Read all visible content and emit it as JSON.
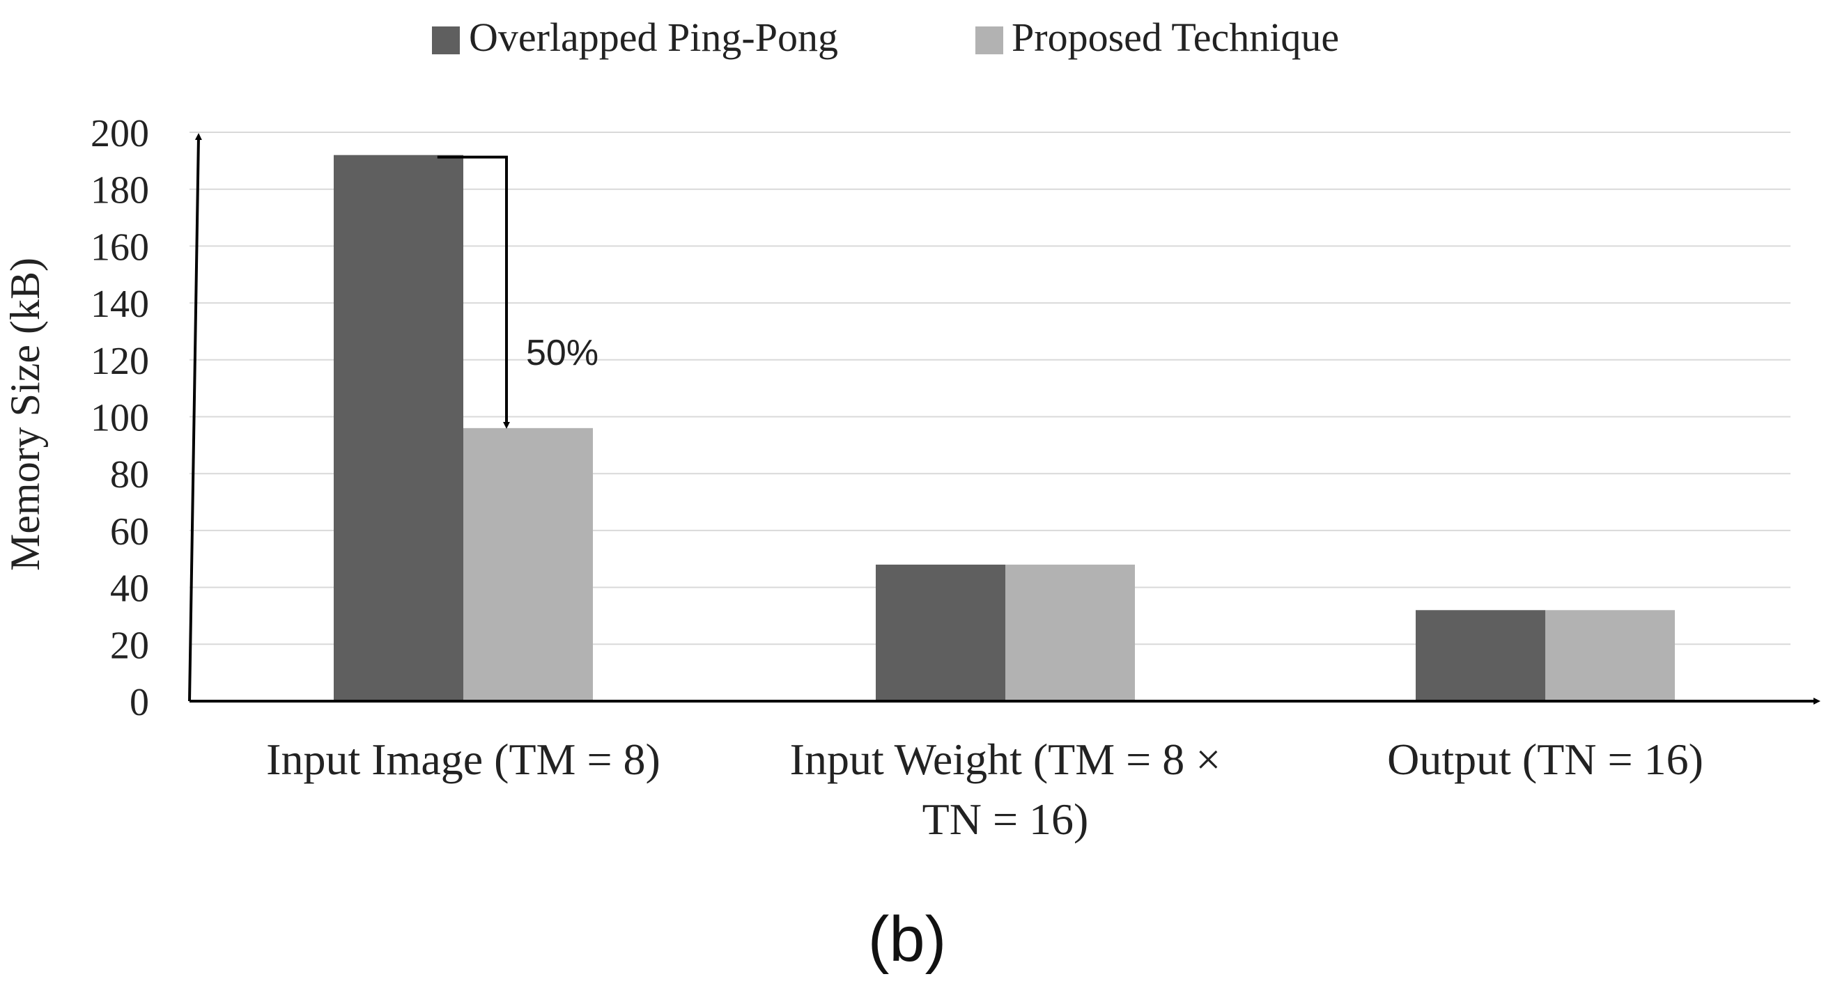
{
  "chart_data": {
    "type": "bar",
    "title": "",
    "xlabel": "",
    "ylabel": "Memory Size (kB)",
    "ylim": [
      0,
      200
    ],
    "yticks": [
      0,
      20,
      40,
      60,
      80,
      100,
      120,
      140,
      160,
      180,
      200
    ],
    "grid": true,
    "legend_position": "top-center",
    "categories": [
      [
        "Input Image (TM = 8)"
      ],
      [
        "Input Weight (TM = 8 ×",
        "TN = 16)"
      ],
      [
        "Output (TN = 16)"
      ]
    ],
    "series": [
      {
        "name": "Overlapped Ping-Pong",
        "color": "#5f5f5f",
        "values": [
          192,
          48,
          32
        ]
      },
      {
        "name": "Proposed Technique",
        "color": "#b2b2b2",
        "values": [
          96,
          48,
          32
        ]
      }
    ],
    "annotations": [
      {
        "text": "50%",
        "from_series": 0,
        "to_series": 1,
        "category": 0
      }
    ]
  },
  "caption": "(b)",
  "colors": {
    "grid": "#d9d9d9",
    "axis": "#000000",
    "text": "#222222"
  }
}
